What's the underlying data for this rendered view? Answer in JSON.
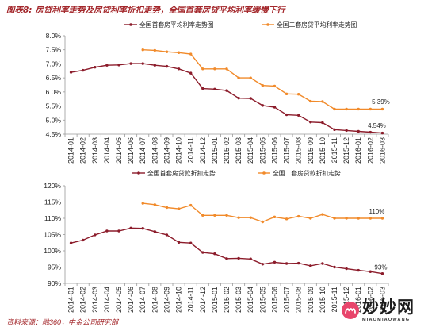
{
  "figure": {
    "label": "图表8:",
    "title": "房贷利率走势及房贷利率折扣走势，全国首套房贷平均利率缓慢下行",
    "source": "资料来源：融360，中金公司研究部",
    "accent_color": "#A3262A"
  },
  "watermark": {
    "name": "妙妙网",
    "subtitle": "MIAOMIAOWANG",
    "logo_color": "#E8456B"
  },
  "chart_data": [
    {
      "type": "line",
      "x": [
        "2014-01",
        "2014-02",
        "2014-03",
        "2014-04",
        "2014-05",
        "2014-06",
        "2014-07",
        "2014-08",
        "2014-09",
        "2014-10",
        "2014-11",
        "2014-12",
        "2015-01",
        "2015-02",
        "2015-03",
        "2015-04",
        "2015-05",
        "2015-06",
        "2015-07",
        "2015-08",
        "2015-09",
        "2015-10",
        "2015-11",
        "2015-12",
        "2016-01",
        "2016-02",
        "2016-03"
      ],
      "y_ticks": [
        4.5,
        5.0,
        5.5,
        6.0,
        6.5,
        7.0,
        7.5,
        8.0
      ],
      "y_tick_labels": [
        "4.5%",
        "5.0%",
        "5.5%",
        "6.0%",
        "6.5%",
        "7.0%",
        "7.5%",
        "8.0%"
      ],
      "ylim": [
        4.5,
        8.0
      ],
      "grid": false,
      "legend": "top-center",
      "series": [
        {
          "name": "全国首套房平均利率走势图",
          "color": "#8C1C2B",
          "values": [
            6.7,
            6.77,
            6.88,
            6.95,
            6.96,
            7.01,
            7.01,
            6.95,
            6.91,
            6.82,
            6.67,
            6.12,
            6.1,
            6.05,
            5.78,
            5.77,
            5.52,
            5.46,
            5.19,
            5.17,
            4.93,
            4.91,
            4.66,
            4.63,
            4.6,
            4.57,
            4.54
          ]
        },
        {
          "name": "全国二套房贷平均利率走势图",
          "color": "#F18A2A",
          "values": [
            null,
            null,
            null,
            null,
            null,
            null,
            7.5,
            7.48,
            7.43,
            7.4,
            7.35,
            6.82,
            6.82,
            6.82,
            6.5,
            6.5,
            6.23,
            6.21,
            5.93,
            5.92,
            5.67,
            5.66,
            5.39,
            5.39,
            5.39,
            5.39,
            5.39
          ]
        }
      ],
      "data_labels": [
        {
          "series": 1,
          "index": 26,
          "text": "5.39%"
        },
        {
          "series": 0,
          "index": 26,
          "text": "4.54%"
        }
      ]
    },
    {
      "type": "line",
      "x": [
        "2014-01",
        "2014-02",
        "2014-03",
        "2014-04",
        "2014-05",
        "2014-06",
        "2014-07",
        "2014-08",
        "2014-09",
        "2014-10",
        "2014-11",
        "2014-12",
        "2015-01",
        "2015-02",
        "2015-03",
        "2015-04",
        "2015-05",
        "2015-06",
        "2015-07",
        "2015-08",
        "2015-09",
        "2015-10",
        "2015-11",
        "2015-12",
        "2016-01",
        "2016-02",
        "2016-03"
      ],
      "y_ticks": [
        90,
        95,
        100,
        105,
        110,
        115,
        120
      ],
      "y_tick_labels": [
        "90%",
        "95%",
        "100%",
        "105%",
        "110%",
        "115%",
        "120%"
      ],
      "ylim": [
        90,
        120
      ],
      "grid": false,
      "legend": "top-center",
      "series": [
        {
          "name": "全国首套房贷款折扣走势",
          "color": "#8C1C2B",
          "values": [
            102.4,
            103.3,
            104.9,
            106.1,
            106.1,
            107.0,
            106.9,
            105.9,
            104.9,
            102.6,
            102.4,
            99.5,
            99.1,
            97.6,
            97.7,
            97.5,
            95.9,
            96.5,
            96.1,
            96.2,
            95.4,
            96.1,
            95.0,
            94.5,
            94.0,
            93.6,
            93.0
          ]
        },
        {
          "name": "全国二套房贷款折扣走势",
          "color": "#F18A2A",
          "values": [
            null,
            null,
            null,
            null,
            null,
            null,
            114.6,
            114.2,
            113.3,
            112.9,
            114.0,
            110.9,
            110.9,
            110.9,
            110.2,
            110.2,
            108.9,
            110.4,
            109.8,
            110.6,
            110.0,
            111.2,
            110.0,
            110.0,
            110.0,
            110.0,
            110.0
          ]
        }
      ],
      "data_labels": [
        {
          "series": 1,
          "index": 26,
          "text": "110%"
        },
        {
          "series": 0,
          "index": 26,
          "text": "93%"
        }
      ]
    }
  ]
}
